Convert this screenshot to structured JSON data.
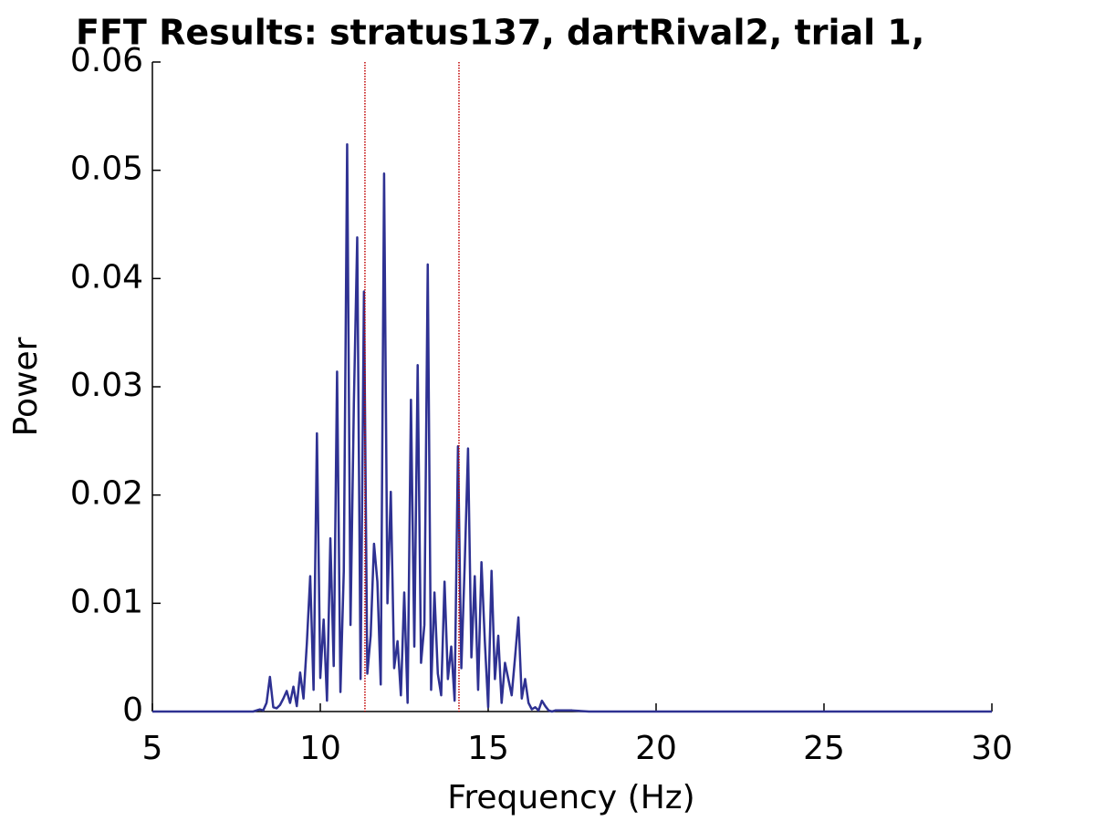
{
  "chart_data": {
    "type": "line",
    "title": "FFT Results: stratus137, dartRival2, trial 1,",
    "xlabel": "Frequency (Hz)",
    "ylabel": "Power",
    "x": [
      5,
      8.0,
      8.1,
      8.2,
      8.3,
      8.4,
      8.5,
      8.6,
      8.7,
      8.8,
      8.9,
      9.0,
      9.1,
      9.2,
      9.3,
      9.4,
      9.5,
      9.6,
      9.7,
      9.8,
      9.9,
      10.0,
      10.1,
      10.2,
      10.3,
      10.4,
      10.5,
      10.6,
      10.7,
      10.8,
      10.9,
      11.0,
      11.1,
      11.2,
      11.3,
      11.4,
      11.5,
      11.6,
      11.7,
      11.8,
      11.9,
      12.0,
      12.1,
      12.2,
      12.3,
      12.4,
      12.5,
      12.6,
      12.7,
      12.8,
      12.9,
      13.0,
      13.1,
      13.2,
      13.3,
      13.4,
      13.5,
      13.6,
      13.7,
      13.8,
      13.9,
      14.0,
      14.1,
      14.2,
      14.3,
      14.4,
      14.5,
      14.6,
      14.7,
      14.8,
      14.9,
      15.0,
      15.1,
      15.2,
      15.3,
      15.4,
      15.5,
      15.6,
      15.7,
      15.8,
      15.9,
      16.0,
      16.1,
      16.2,
      16.3,
      16.4,
      16.5,
      16.6,
      16.7,
      16.8,
      16.9,
      17.0,
      17.5,
      18,
      30
    ],
    "values": [
      0,
      0,
      0.0001,
      0.0002,
      0.0001,
      0.0008,
      0.0032,
      0.0004,
      0.0003,
      0.0006,
      0.0012,
      0.0019,
      0.0008,
      0.0023,
      0.0005,
      0.0036,
      0.0012,
      0.0063,
      0.0125,
      0.002,
      0.0257,
      0.0031,
      0.0085,
      0.001,
      0.016,
      0.0042,
      0.0314,
      0.0018,
      0.013,
      0.0524,
      0.008,
      0.0285,
      0.0438,
      0.003,
      0.0388,
      0.0035,
      0.007,
      0.0155,
      0.012,
      0.0025,
      0.0497,
      0.01,
      0.0203,
      0.004,
      0.0065,
      0.0015,
      0.011,
      0.0008,
      0.0288,
      0.006,
      0.032,
      0.0045,
      0.008,
      0.0413,
      0.002,
      0.011,
      0.0035,
      0.0015,
      0.012,
      0.003,
      0.006,
      0.001,
      0.0245,
      0.004,
      0.0135,
      0.0243,
      0.005,
      0.0125,
      0.002,
      0.0138,
      0.0065,
      0.0004,
      0.013,
      0.003,
      0.007,
      0.0008,
      0.0045,
      0.003,
      0.0015,
      0.005,
      0.0087,
      0.0012,
      0.003,
      0.0008,
      0.0002,
      0.0004,
      0.0001,
      0.001,
      0.0005,
      0.0001,
      0,
      0.0001,
      0.0001,
      0,
      0
    ],
    "color": "#2e3192",
    "vlines": [
      11.33,
      14.13
    ],
    "vline_color": "#c00000",
    "xlim": [
      5,
      30
    ],
    "xticks": [
      5,
      10,
      15,
      20,
      25,
      30
    ],
    "ylim": [
      0,
      0.06
    ],
    "yticks": [
      0,
      0.01,
      0.02,
      0.03,
      0.04,
      0.05,
      0.06
    ],
    "grid": false
  }
}
